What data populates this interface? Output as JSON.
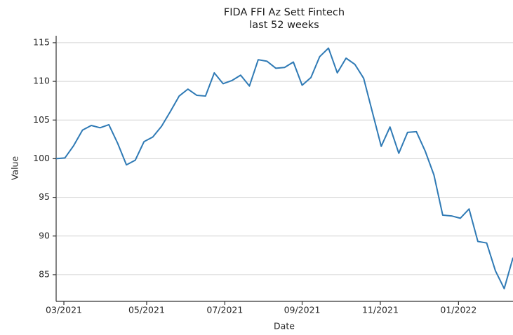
{
  "chart_data": {
    "type": "line",
    "title": "FIDA FFI Az Sett Fintech",
    "subtitle": "last 52 weeks",
    "x_label": "Date",
    "y_label": "Value",
    "series": [
      {
        "name": "FIDA FFI Az Sett Fintech",
        "color": "#2f7ab5",
        "values": [
          100.0,
          100.1,
          101.7,
          103.7,
          104.3,
          104.0,
          104.4,
          102.0,
          99.2,
          99.8,
          102.2,
          102.8,
          104.2,
          106.1,
          108.1,
          109.0,
          108.2,
          108.1,
          111.1,
          109.7,
          110.1,
          110.8,
          109.4,
          112.8,
          112.6,
          111.7,
          111.8,
          112.5,
          109.5,
          110.5,
          113.2,
          114.3,
          111.1,
          113.0,
          112.2,
          110.4,
          106.0,
          101.6,
          104.1,
          100.7,
          103.4,
          103.5,
          101.0,
          97.9,
          92.7,
          92.6,
          92.3,
          93.5,
          89.3,
          89.1,
          85.5,
          83.2,
          87.2
        ]
      }
    ],
    "xlim": [
      0,
      52
    ],
    "xticks": [
      {
        "value": 0.88,
        "label": "03/2021"
      },
      {
        "value": 10.3,
        "label": "05/2021"
      },
      {
        "value": 19.2,
        "label": "07/2021"
      },
      {
        "value": 28.0,
        "label": "09/2021"
      },
      {
        "value": 36.9,
        "label": "11/2021"
      },
      {
        "value": 45.8,
        "label": "01/2022"
      }
    ],
    "ylim": [
      81.55,
      115.9
    ],
    "yticks": [
      85,
      90,
      95,
      100,
      105,
      110,
      115
    ],
    "grid": true
  }
}
